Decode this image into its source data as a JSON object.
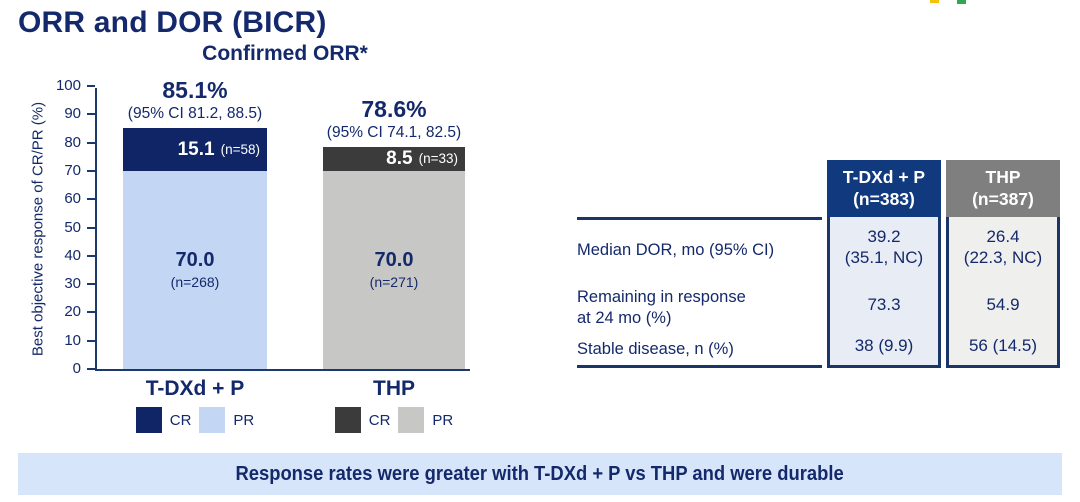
{
  "page": {
    "title": "ORR and DOR (BICR)"
  },
  "colors": {
    "navy": "#14296B",
    "axis": "#1B3A6B",
    "border_navy": "#1B3566",
    "banner_bg": "#D7E5FA"
  },
  "logo": {
    "fragments": [
      {
        "name": "yellow-fragment",
        "color": "#F4C20D"
      },
      {
        "name": "green-fragment",
        "color": "#2FA84F"
      }
    ]
  },
  "chart_data": {
    "type": "bar",
    "stacked": true,
    "title": "Confirmed ORR*",
    "ylabel": "Best objective response of CR/PR (%)",
    "xlabel": "",
    "ylim": [
      0,
      100
    ],
    "ytick_step": 10,
    "grid": false,
    "legend_position": "below-each-category",
    "categories": [
      "T-DXd + P",
      "THP"
    ],
    "series": [
      {
        "name": "CR",
        "values": [
          15.1,
          8.5
        ],
        "labels": [
          "15.1",
          "8.5"
        ],
        "counts": [
          "(n=58)",
          "(n=33)"
        ],
        "colors": [
          "#0F2566",
          "#3B3B3B"
        ]
      },
      {
        "name": "PR",
        "values": [
          70.0,
          70.0
        ],
        "labels": [
          "70.0",
          "70.0"
        ],
        "counts": [
          "(n=268)",
          "(n=271)"
        ],
        "colors": [
          "#C3D6F4",
          "#C7C7C5"
        ]
      }
    ],
    "totals": [
      {
        "pct": "85.1%",
        "ci": "(95% CI 81.2, 88.5)"
      },
      {
        "pct": "78.6%",
        "ci": "(95% CI 74.1, 82.5)"
      }
    ],
    "legend_entries": [
      "CR",
      "PR"
    ]
  },
  "table": {
    "columns": [
      {
        "title": "T-DXd + P",
        "n_label": "(n=383)",
        "header_bg": "#113A7E",
        "body_bg": "#E8ECF4"
      },
      {
        "title": "THP",
        "n_label": "(n=387)",
        "header_bg": "#7F7F7F",
        "body_bg": "#EFEFEE"
      }
    ],
    "rows": [
      {
        "label_lines": [
          "Median DOR, mo (95% CI)"
        ],
        "values": [
          "39.2",
          "26.4"
        ],
        "values_sub": [
          "(35.1, NC)",
          "(22.3, NC)"
        ]
      },
      {
        "label_lines": [
          "Remaining in response",
          "at 24 mo (%)"
        ],
        "values": [
          "73.3",
          "54.9"
        ]
      },
      {
        "label_lines": [
          "Stable disease, n (%)"
        ],
        "values": [
          "38 (9.9)",
          "56 (14.5)"
        ]
      }
    ]
  },
  "banner": {
    "text": "Response rates were greater with T-DXd + P vs THP and were durable"
  }
}
